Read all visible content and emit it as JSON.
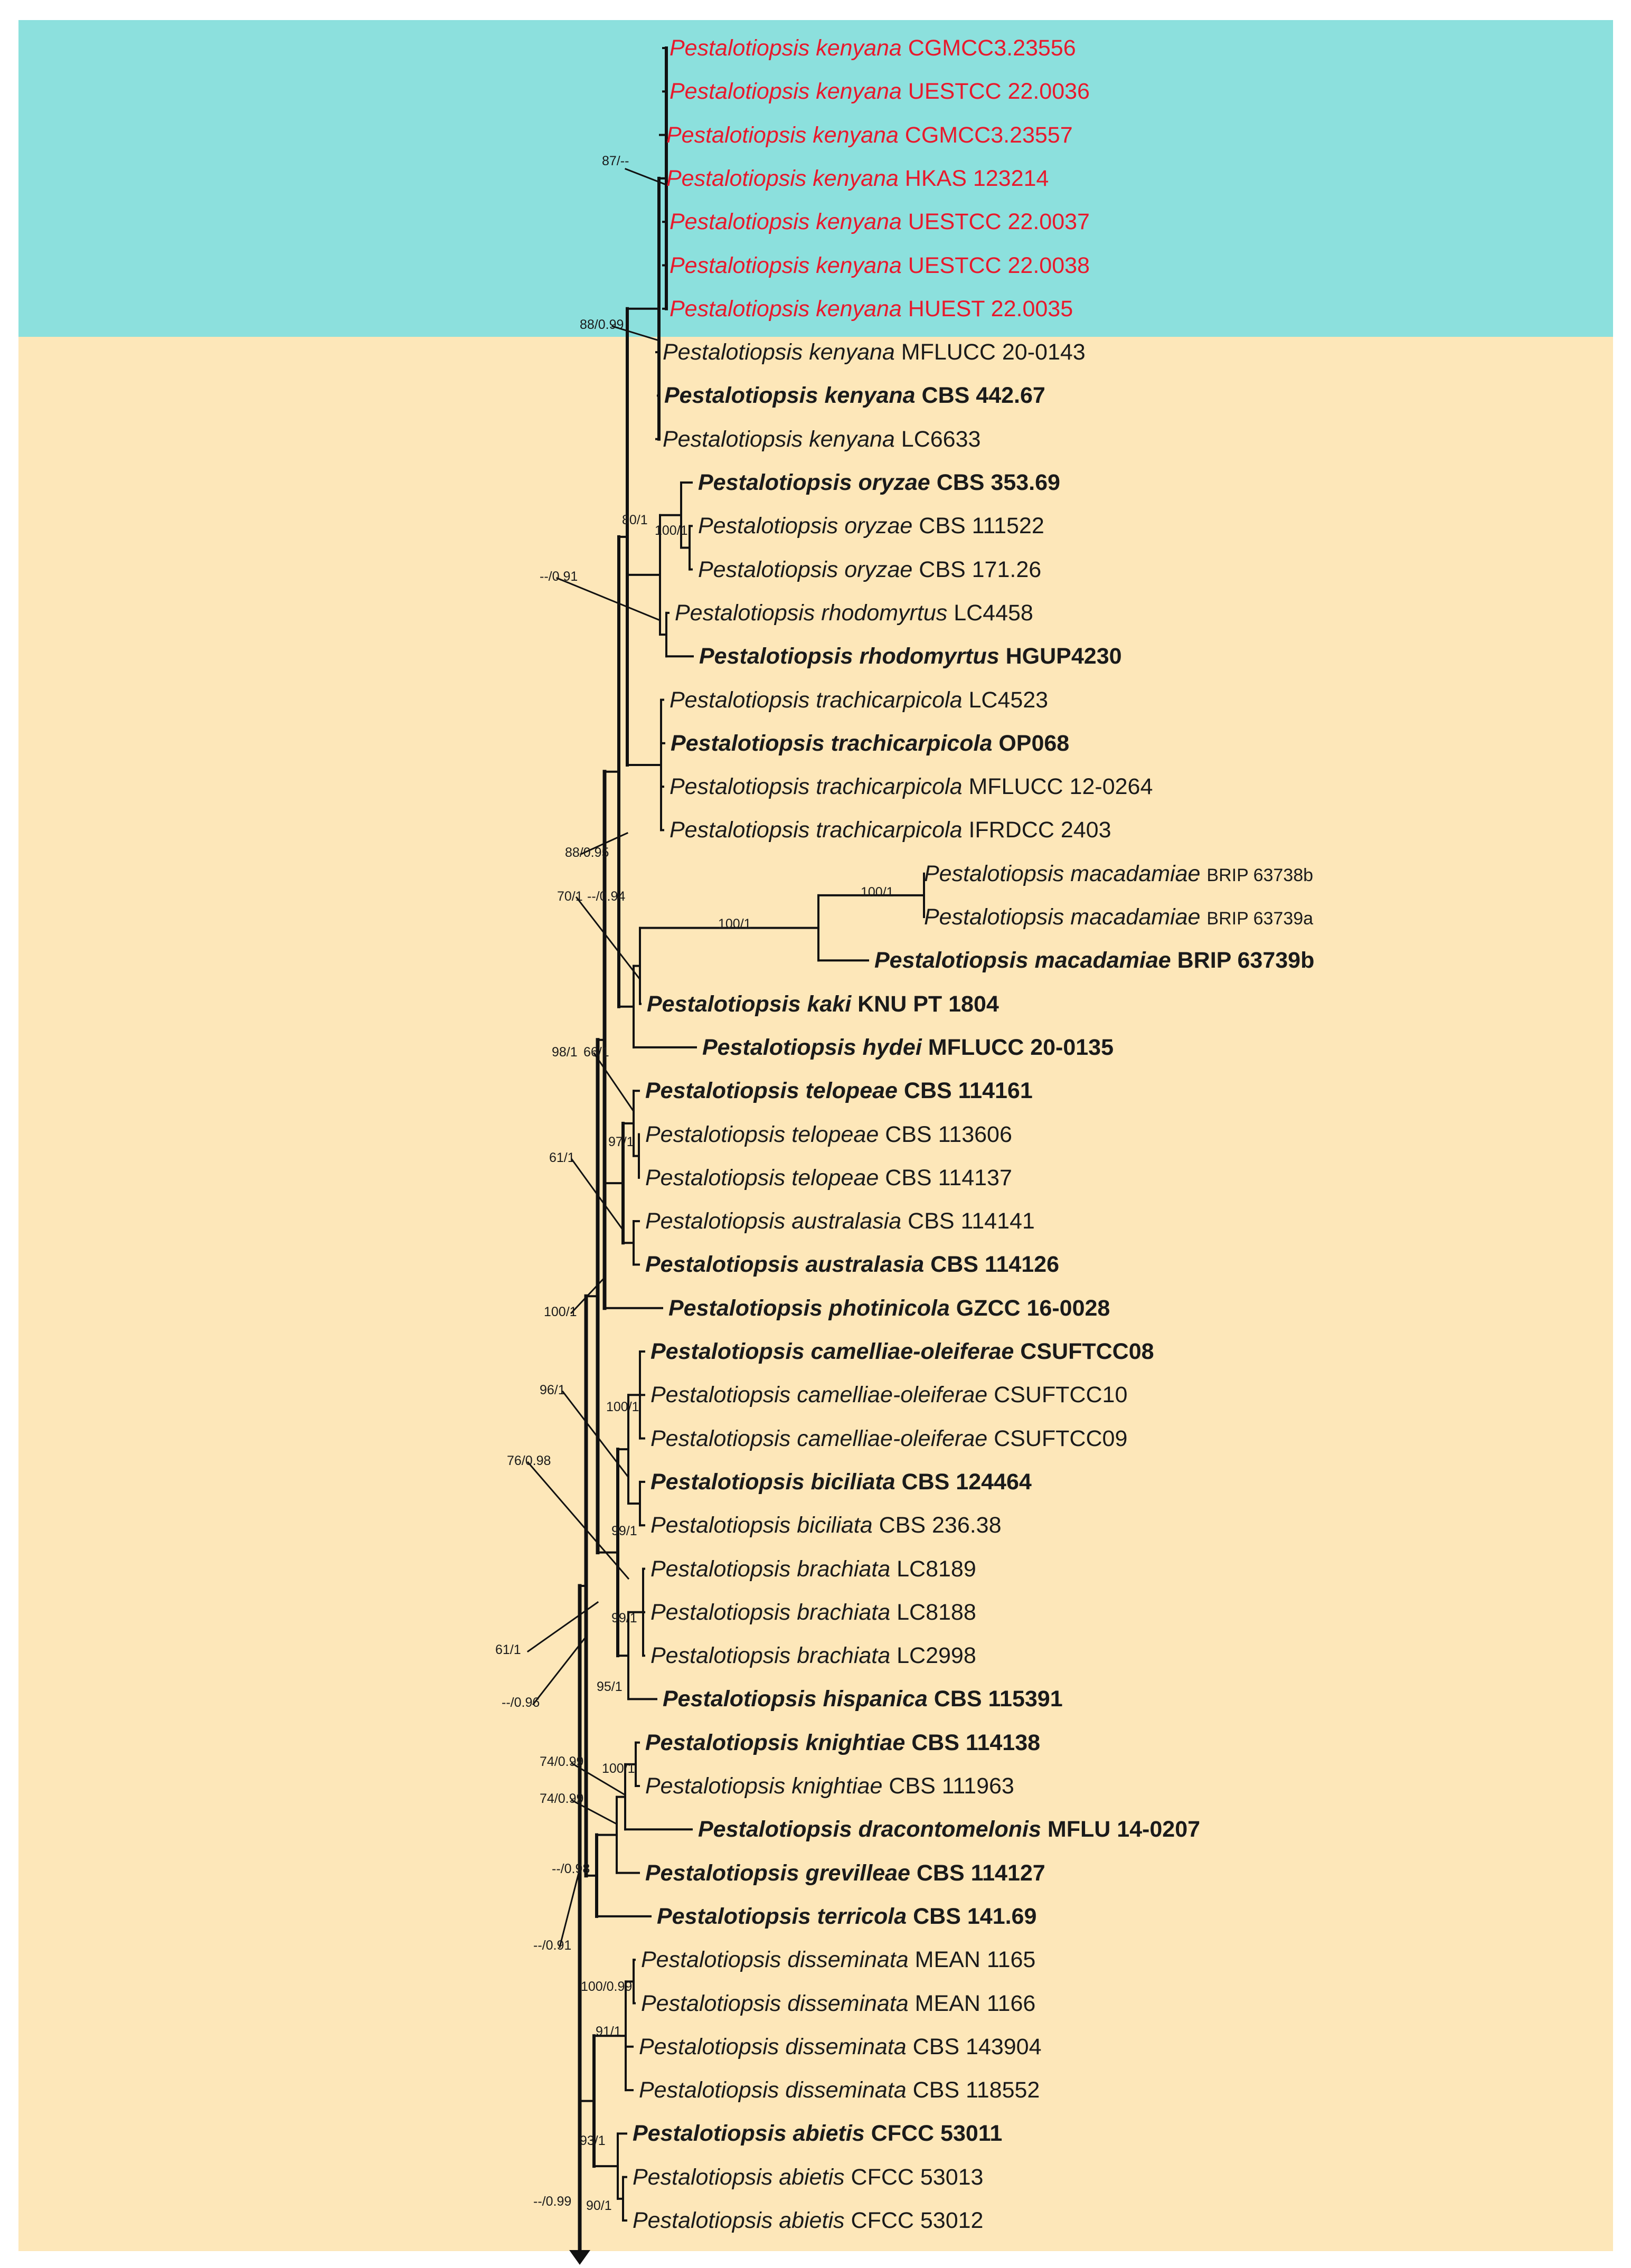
{
  "figure": {
    "colors": {
      "highlight_band": "#8ce0dd",
      "background_band": "#fde7b9",
      "highlight_text": "#e8192c",
      "branch": "#111111"
    },
    "tips": [
      {
        "species": "Pestalotiopsis kenyana",
        "strain": "CGMCC3.23556",
        "bold": false,
        "highlight": true
      },
      {
        "species": "Pestalotiopsis kenyana",
        "strain": "UESTCC 22.0036",
        "bold": false,
        "highlight": true
      },
      {
        "species": "Pestalotiopsis kenyana",
        "strain": "CGMCC3.23557",
        "bold": false,
        "highlight": true
      },
      {
        "species": "Pestalotiopsis kenyana",
        "strain": "HKAS 123214",
        "bold": false,
        "highlight": true
      },
      {
        "species": "Pestalotiopsis kenyana",
        "strain": "UESTCC 22.0037",
        "bold": false,
        "highlight": true
      },
      {
        "species": "Pestalotiopsis kenyana",
        "strain": "UESTCC 22.0038",
        "bold": false,
        "highlight": true
      },
      {
        "species": "Pestalotiopsis kenyana",
        "strain": "HUEST 22.0035",
        "bold": false,
        "highlight": true
      },
      {
        "species": "Pestalotiopsis kenyana",
        "strain": "MFLUCC 20-0143",
        "bold": false,
        "highlight": false
      },
      {
        "species": "Pestalotiopsis kenyana",
        "strain": "CBS 442.67",
        "bold": true,
        "highlight": false
      },
      {
        "species": "Pestalotiopsis kenyana",
        "strain": "LC6633",
        "bold": false,
        "highlight": false
      },
      {
        "species": "Pestalotiopsis oryzae",
        "strain": "CBS 353.69",
        "bold": true,
        "highlight": false
      },
      {
        "species": "Pestalotiopsis oryzae",
        "strain": "CBS 111522",
        "bold": false,
        "highlight": false
      },
      {
        "species": "Pestalotiopsis oryzae",
        "strain": "CBS 171.26",
        "bold": false,
        "highlight": false
      },
      {
        "species": "Pestalotiopsis rhodomyrtus",
        "strain": "LC4458",
        "bold": false,
        "highlight": false
      },
      {
        "species": "Pestalotiopsis rhodomyrtus",
        "strain": "HGUP4230",
        "bold": true,
        "highlight": false
      },
      {
        "species": "Pestalotiopsis trachicarpicola",
        "strain": "LC4523",
        "bold": false,
        "highlight": false
      },
      {
        "species": "Pestalotiopsis trachicarpicola",
        "strain": "OP068",
        "bold": true,
        "highlight": false
      },
      {
        "species": "Pestalotiopsis trachicarpicola",
        "strain": "MFLUCC 12-0264",
        "bold": false,
        "highlight": false
      },
      {
        "species": "Pestalotiopsis trachicarpicola",
        "strain": "IFRDCC 2403",
        "bold": false,
        "highlight": false
      },
      {
        "species": "Pestalotiopsis macadamiae",
        "strain": "BRIP 63738b",
        "bold": false,
        "highlight": false
      },
      {
        "species": "Pestalotiopsis macadamiae",
        "strain": "BRIP 63739a",
        "bold": false,
        "highlight": false
      },
      {
        "species": "Pestalotiopsis macadamiae",
        "strain": "BRIP 63739b",
        "bold": true,
        "highlight": false
      },
      {
        "species": "Pestalotiopsis kaki",
        "strain": "KNU PT 1804",
        "bold": true,
        "highlight": false
      },
      {
        "species": "Pestalotiopsis hydei",
        "strain": "MFLUCC 20-0135",
        "bold": true,
        "highlight": false
      },
      {
        "species": "Pestalotiopsis telopeae",
        "strain": "CBS 114161",
        "bold": true,
        "highlight": false
      },
      {
        "species": "Pestalotiopsis telopeae",
        "strain": "CBS 113606",
        "bold": false,
        "highlight": false
      },
      {
        "species": "Pestalotiopsis telopeae",
        "strain": "CBS 114137",
        "bold": false,
        "highlight": false
      },
      {
        "species": "Pestalotiopsis australasia",
        "strain": "CBS 114141",
        "bold": false,
        "highlight": false
      },
      {
        "species": "Pestalotiopsis australasia",
        "strain": "CBS 114126",
        "bold": true,
        "highlight": false
      },
      {
        "species": "Pestalotiopsis photinicola",
        "strain": "GZCC 16-0028",
        "bold": true,
        "highlight": false
      },
      {
        "species": "Pestalotiopsis camelliae-oleiferae",
        "strain": "CSUFTCC08",
        "bold": true,
        "highlight": false
      },
      {
        "species": "Pestalotiopsis camelliae-oleiferae",
        "strain": "CSUFTCC10",
        "bold": false,
        "highlight": false
      },
      {
        "species": "Pestalotiopsis camelliae-oleiferae",
        "strain": "CSUFTCC09",
        "bold": false,
        "highlight": false
      },
      {
        "species": "Pestalotiopsis biciliata",
        "strain": "CBS 124464",
        "bold": true,
        "highlight": false
      },
      {
        "species": "Pestalotiopsis biciliata",
        "strain": "CBS 236.38",
        "bold": false,
        "highlight": false
      },
      {
        "species": "Pestalotiopsis brachiata",
        "strain": "LC8189",
        "bold": false,
        "highlight": false
      },
      {
        "species": "Pestalotiopsis brachiata",
        "strain": "LC8188",
        "bold": false,
        "highlight": false
      },
      {
        "species": "Pestalotiopsis brachiata",
        "strain": "LC2998",
        "bold": false,
        "highlight": false
      },
      {
        "species": "Pestalotiopsis hispanica",
        "strain": "CBS 115391",
        "bold": true,
        "highlight": false
      },
      {
        "species": "Pestalotiopsis knightiae",
        "strain": "CBS 114138",
        "bold": true,
        "highlight": false
      },
      {
        "species": "Pestalotiopsis knightiae",
        "strain": "CBS 111963",
        "bold": false,
        "highlight": false
      },
      {
        "species": "Pestalotiopsis dracontomelonis",
        "strain": "MFLU 14-0207",
        "bold": true,
        "highlight": false
      },
      {
        "species": "Pestalotiopsis grevilleae",
        "strain": "CBS 114127",
        "bold": true,
        "highlight": false
      },
      {
        "species": "Pestalotiopsis terricola",
        "strain": "CBS 141.69",
        "bold": true,
        "highlight": false
      },
      {
        "species": "Pestalotiopsis disseminata",
        "strain": "MEAN 1165",
        "bold": false,
        "highlight": false
      },
      {
        "species": "Pestalotiopsis disseminata",
        "strain": "MEAN 1166",
        "bold": false,
        "highlight": false
      },
      {
        "species": "Pestalotiopsis disseminata",
        "strain": "CBS 143904",
        "bold": false,
        "highlight": false
      },
      {
        "species": "Pestalotiopsis disseminata",
        "strain": "CBS 118552",
        "bold": false,
        "highlight": false
      },
      {
        "species": "Pestalotiopsis abietis",
        "strain": "CFCC 53011",
        "bold": true,
        "highlight": false
      },
      {
        "species": "Pestalotiopsis abietis",
        "strain": "CFCC 53013",
        "bold": false,
        "highlight": false
      },
      {
        "species": "Pestalotiopsis abietis",
        "strain": "CFCC 53012",
        "bold": false,
        "highlight": false
      }
    ],
    "support_values": [
      "87/--",
      "88/0.99",
      "80/1",
      "100/1",
      "--/0.91",
      "88/0.95",
      "70/1",
      "--/0.94",
      "100/1",
      "100/1",
      "98/1",
      "66/1",
      "97/1",
      "61/1",
      "100/1",
      "96/1",
      "100/1",
      "76/0.98",
      "99/1",
      "99/1",
      "61/1",
      "--/0.96",
      "95/1",
      "74/0.99",
      "100/1",
      "74/0.99",
      "--/0.98",
      "--/0.91",
      "100/0.99",
      "91/1",
      "93/1",
      "--/0.99",
      "90/1"
    ]
  }
}
